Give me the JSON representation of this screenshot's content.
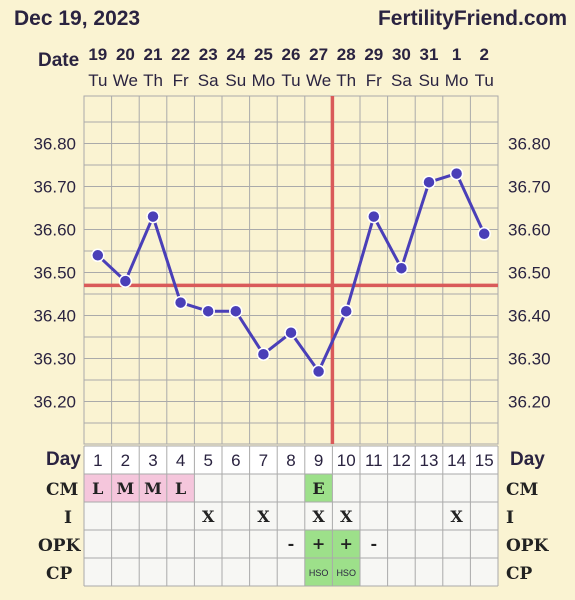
{
  "header": {
    "date": "Dec 19, 2023",
    "site": "FertilityFriend.com"
  },
  "labels": {
    "date": "Date",
    "day": "Day",
    "cm": "CM",
    "i": "I",
    "opk": "OPK",
    "cp": "CP"
  },
  "columns": [
    {
      "date": "19",
      "dow": "Tu",
      "day": "1",
      "cm": "L",
      "i": "",
      "opk": "",
      "cp": ""
    },
    {
      "date": "20",
      "dow": "We",
      "day": "2",
      "cm": "M",
      "i": "",
      "opk": "",
      "cp": ""
    },
    {
      "date": "21",
      "dow": "Th",
      "day": "3",
      "cm": "M",
      "i": "",
      "opk": "",
      "cp": ""
    },
    {
      "date": "22",
      "dow": "Fr",
      "day": "4",
      "cm": "L",
      "i": "",
      "opk": "",
      "cp": ""
    },
    {
      "date": "23",
      "dow": "Sa",
      "day": "5",
      "cm": "",
      "i": "X",
      "opk": "",
      "cp": ""
    },
    {
      "date": "24",
      "dow": "Su",
      "day": "6",
      "cm": "",
      "i": "",
      "opk": "",
      "cp": ""
    },
    {
      "date": "25",
      "dow": "Mo",
      "day": "7",
      "cm": "",
      "i": "X",
      "opk": "",
      "cp": ""
    },
    {
      "date": "26",
      "dow": "Tu",
      "day": "8",
      "cm": "",
      "i": "",
      "opk": "-",
      "cp": ""
    },
    {
      "date": "27",
      "dow": "We",
      "day": "9",
      "cm": "E",
      "i": "X",
      "opk": "+",
      "cp": "HSO"
    },
    {
      "date": "28",
      "dow": "Th",
      "day": "10",
      "cm": "",
      "i": "X",
      "opk": "+",
      "cp": "HSO"
    },
    {
      "date": "29",
      "dow": "Fr",
      "day": "11",
      "cm": "",
      "i": "",
      "opk": "-",
      "cp": ""
    },
    {
      "date": "30",
      "dow": "Sa",
      "day": "12",
      "cm": "",
      "i": "",
      "opk": "",
      "cp": ""
    },
    {
      "date": "31",
      "dow": "Su",
      "day": "13",
      "cm": "",
      "i": "",
      "opk": "",
      "cp": ""
    },
    {
      "date": "1",
      "dow": "Mo",
      "day": "14",
      "cm": "",
      "i": "X",
      "opk": "",
      "cp": ""
    },
    {
      "date": "2",
      "dow": "Tu",
      "day": "15",
      "cm": "",
      "i": "",
      "opk": "",
      "cp": ""
    }
  ],
  "colors": {
    "background": "#faf3d2",
    "line": "#4a3fb8",
    "coverline": "#d95a5a",
    "grid": "#aaa",
    "cm_pink": "#f5c6dc",
    "fertile_green": "#9de08a"
  },
  "chart_data": {
    "type": "line",
    "x": [
      1,
      2,
      3,
      4,
      5,
      6,
      7,
      8,
      9,
      10,
      11,
      12,
      13,
      14,
      15
    ],
    "y_ticks": [
      "36.80",
      "36.70",
      "36.60",
      "36.50",
      "36.40",
      "36.30",
      "36.20"
    ],
    "ylim": [
      36.1,
      36.9
    ],
    "series": [
      {
        "values": [
          36.54,
          36.48,
          36.63,
          36.43,
          36.41,
          36.41,
          36.31,
          36.36,
          36.27,
          36.41,
          36.63,
          36.51,
          36.71,
          36.73,
          36.59
        ]
      }
    ],
    "coverline": 36.47,
    "ovulation_day": 10
  }
}
